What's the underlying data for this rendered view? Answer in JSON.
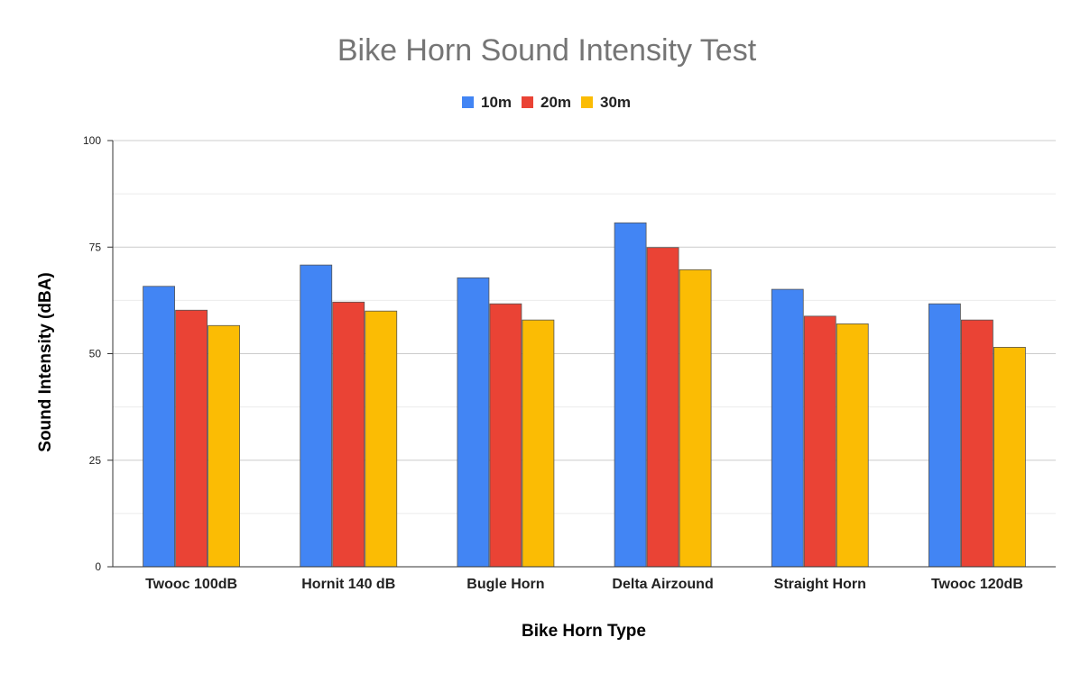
{
  "chart_data": {
    "type": "bar",
    "title": "Bike Horn Sound Intensity Test",
    "xlabel": "Bike Horn Type",
    "ylabel": "Sound Intensity (dBA)",
    "ylim": [
      0,
      100
    ],
    "yticks": [
      "0",
      "25",
      "50",
      "75",
      "100"
    ],
    "grid": true,
    "legend_position": "top",
    "categories": [
      "Twooc 100dB",
      "Hornit 140 dB",
      "Bugle Horn",
      "Delta Airzound",
      "Straight Horn",
      "Twooc 120dB"
    ],
    "series": [
      {
        "name": "10m",
        "color": "#4285f4",
        "values": [
          65.8,
          70.8,
          67.8,
          80.7,
          65.1,
          61.7
        ]
      },
      {
        "name": "20m",
        "color": "#ea4335",
        "values": [
          60.2,
          62.1,
          61.7,
          74.9,
          58.8,
          57.9
        ]
      },
      {
        "name": "30m",
        "color": "#fbbc04",
        "values": [
          56.6,
          60.0,
          57.9,
          69.7,
          57.0,
          51.5
        ]
      }
    ]
  }
}
